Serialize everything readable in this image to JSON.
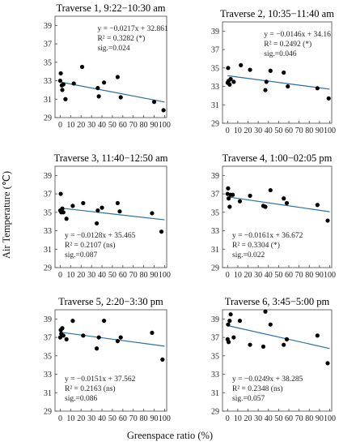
{
  "figure": {
    "y_axis_label": "Air Temperature (℃)",
    "x_axis_label": "Greenspace ratio (%)"
  },
  "chart_data": [
    {
      "type": "scatter",
      "title": "Traverse 1, 9:22−10:30 am",
      "xlim": [
        -5,
        102
      ],
      "ylim": [
        29,
        40
      ],
      "xticks": [
        "0",
        "10",
        "20",
        "30",
        "40",
        "50",
        "60",
        "70",
        "80",
        "90",
        "100"
      ],
      "yticks": [
        "29",
        "31",
        "33",
        "35",
        "37",
        "39"
      ],
      "xtick_values": [
        0,
        10,
        20,
        30,
        40,
        50,
        60,
        70,
        80,
        90,
        100
      ],
      "ytick_values": [
        29,
        31,
        33,
        35,
        37,
        39
      ],
      "x": [
        0,
        0.5,
        1.5,
        2,
        3,
        5,
        13,
        21,
        36,
        37,
        42,
        55,
        58,
        90,
        99
      ],
      "y": [
        33.0,
        33.8,
        32.5,
        32.0,
        32.6,
        31.0,
        32.7,
        34.5,
        32.2,
        31.3,
        32.8,
        33.4,
        31.2,
        30.7,
        29.8
      ],
      "fit": {
        "slope": -0.0217,
        "intercept": 32.861
      },
      "annotation": [
        "y = −0.0217x + 32.861",
        "R² = 0.3282 (*)",
        "sig.=0.024"
      ],
      "annotation_pos": "top-right",
      "grid": false
    },
    {
      "type": "scatter",
      "title": "Traverse 2, 10:35−11:40 am",
      "xlim": [
        -5,
        102
      ],
      "ylim": [
        29,
        40
      ],
      "xticks": [
        "0",
        "10",
        "20",
        "30",
        "40",
        "50",
        "60",
        "70",
        "80",
        "90",
        "100"
      ],
      "yticks": [
        "29",
        "31",
        "33",
        "35",
        "37",
        "39"
      ],
      "xtick_values": [
        0,
        10,
        20,
        30,
        40,
        50,
        60,
        70,
        80,
        90,
        100
      ],
      "ytick_values": [
        29,
        31,
        33,
        35,
        37,
        39
      ],
      "x": [
        0,
        0.5,
        1,
        2,
        3,
        6,
        13,
        22,
        37,
        38,
        42,
        55,
        59,
        88,
        99
      ],
      "y": [
        33.4,
        35.0,
        33.6,
        33.2,
        33.8,
        33.5,
        35.3,
        34.8,
        32.6,
        33.5,
        34.7,
        34.5,
        33.0,
        32.8,
        31.7
      ],
      "fit": {
        "slope": -0.0146,
        "intercept": 34.16
      },
      "annotation": [
        "y = −0.0146x + 34.16",
        "R² = 0.2492 (*)",
        "sig.=0.046"
      ],
      "annotation_pos": "top-right",
      "grid": false
    },
    {
      "type": "scatter",
      "title": "Traverse 3, 11:40−12:50 am",
      "xlim": [
        -5,
        102
      ],
      "ylim": [
        29,
        40
      ],
      "xticks": [
        "0",
        "10",
        "20",
        "30",
        "40",
        "50",
        "60",
        "70",
        "80",
        "90",
        "100"
      ],
      "yticks": [
        "29",
        "31",
        "33",
        "35",
        "37",
        "39"
      ],
      "xtick_values": [
        0,
        10,
        20,
        30,
        40,
        50,
        60,
        70,
        80,
        90,
        100
      ],
      "ytick_values": [
        29,
        31,
        33,
        35,
        37,
        39
      ],
      "x": [
        0,
        0.5,
        1,
        2,
        3,
        6,
        12,
        22,
        35,
        36,
        40,
        55,
        57,
        88,
        97
      ],
      "y": [
        35.2,
        37.0,
        35.0,
        35.4,
        35.0,
        34.3,
        35.7,
        36.0,
        33.8,
        35.2,
        35.5,
        36.0,
        35.1,
        34.9,
        32.9
      ],
      "fit": {
        "slope": -0.0128,
        "intercept": 35.465
      },
      "annotation": [
        "y = −0.0128x + 35.465",
        "R² = 0.2107 (ns)",
        "sig.=0.087"
      ],
      "annotation_pos": "bottom-left",
      "grid": false
    },
    {
      "type": "scatter",
      "title": "Traverse 4, 1:00−02:05 pm",
      "xlim": [
        -5,
        102
      ],
      "ylim": [
        29,
        40
      ],
      "xticks": [
        "0",
        "10",
        "20",
        "30",
        "40",
        "50",
        "60",
        "70",
        "80",
        "90",
        "100"
      ],
      "yticks": [
        "29",
        "31",
        "33",
        "35",
        "37",
        "39"
      ],
      "xtick_values": [
        0,
        10,
        20,
        30,
        40,
        50,
        60,
        70,
        80,
        90,
        100
      ],
      "ytick_values": [
        29,
        31,
        33,
        35,
        37,
        39
      ],
      "x": [
        0,
        0.5,
        1,
        2,
        3,
        5,
        12,
        22,
        35,
        37,
        42,
        55,
        58,
        88,
        98
      ],
      "y": [
        37.0,
        37.6,
        36.5,
        35.6,
        36.9,
        36.9,
        36.2,
        36.8,
        35.7,
        35.6,
        37.4,
        36.5,
        36.0,
        35.8,
        34.1
      ],
      "fit": {
        "slope": -0.0161,
        "intercept": 36.672
      },
      "annotation": [
        "y = −0.0161x + 36.672",
        "R² = 0.3304 (*)",
        "sig.=0.022"
      ],
      "annotation_pos": "bottom-left",
      "grid": false
    },
    {
      "type": "scatter",
      "title": "Traverse 5, 2:20−3:30 pm",
      "xlim": [
        -5,
        102
      ],
      "ylim": [
        29,
        40
      ],
      "xticks": [
        "0",
        "10",
        "20",
        "30",
        "40",
        "50",
        "60",
        "70",
        "80",
        "90",
        "100"
      ],
      "yticks": [
        "29",
        "31",
        "33",
        "35",
        "37",
        "39"
      ],
      "xtick_values": [
        0,
        10,
        20,
        30,
        40,
        50,
        60,
        70,
        80,
        90,
        100
      ],
      "ytick_values": [
        29,
        31,
        33,
        35,
        37,
        39
      ],
      "x": [
        0,
        0.5,
        1,
        2,
        3,
        6,
        12,
        22,
        35,
        37,
        42,
        55,
        58,
        88,
        98
      ],
      "y": [
        37.0,
        37.8,
        37.4,
        38.0,
        37.2,
        36.8,
        38.8,
        37.2,
        35.8,
        37.0,
        38.8,
        36.6,
        37.0,
        37.5,
        34.6
      ],
      "fit": {
        "slope": -0.0151,
        "intercept": 37.562
      },
      "annotation": [
        "y = −0.0151x + 37.562",
        "R² = 0.2163 (ns)",
        "sig.=0.086"
      ],
      "annotation_pos": "bottom-left",
      "grid": false
    },
    {
      "type": "scatter",
      "title": "Traverse 6, 3:45−5:00 pm",
      "xlim": [
        -5,
        102
      ],
      "ylim": [
        29,
        40
      ],
      "xticks": [
        "0",
        "10",
        "20",
        "30",
        "40",
        "50",
        "60",
        "70",
        "80",
        "90",
        "100"
      ],
      "yticks": [
        "29",
        "31",
        "33",
        "35",
        "37",
        "39"
      ],
      "xtick_values": [
        0,
        10,
        20,
        30,
        40,
        50,
        60,
        70,
        80,
        90,
        100
      ],
      "ytick_values": [
        29,
        31,
        33,
        35,
        37,
        39
      ],
      "x": [
        0,
        0.5,
        1,
        2,
        3,
        6,
        12,
        22,
        35,
        37,
        42,
        55,
        58,
        88,
        98
      ],
      "y": [
        36.8,
        38.4,
        36.5,
        38.8,
        39.5,
        37.0,
        38.8,
        36.2,
        36.0,
        39.8,
        38.4,
        36.2,
        36.8,
        37.2,
        34.2
      ],
      "fit": {
        "slope": -0.0249,
        "intercept": 38.285
      },
      "annotation": [
        "y = −0.0249x + 38.285",
        "R² = 0.2348 (ns)",
        "sig.=0.057"
      ],
      "annotation_pos": "bottom-left",
      "grid": false
    }
  ],
  "colors": {
    "fit_line": "#2e6f9e",
    "point": "#000000",
    "frame": "#444444"
  }
}
